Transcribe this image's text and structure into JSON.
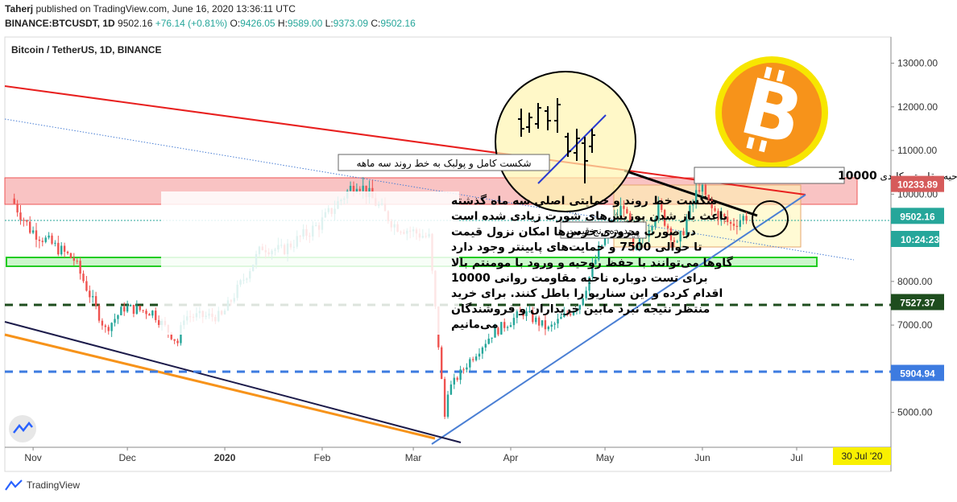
{
  "header": {
    "user": "Taherj",
    "published_line": "published on TradingView.com, June 16, 2020 13:36:11 UTC",
    "symbol_line": "BINANCE:BTCUSDT, 1D",
    "last": "9502.16",
    "change": "+76.14 (+0.81%)",
    "o_label": "O:",
    "o": "9426.05",
    "h_label": "H:",
    "h": "9589.00",
    "l_label": "L:",
    "l": "9373.09",
    "c_label": "C:",
    "c": "9502.16"
  },
  "chart_title": "Bitcoin / TetherUS, 1D, BINANCE",
  "footer": {
    "brand": "TradingView"
  },
  "colors": {
    "up": "#26a69a",
    "down": "#ef5350",
    "resistance_line": "#e8201f",
    "support_line": "#4a7fd4",
    "zone_red": "#f8b4b4",
    "zone_green": "#33dd33",
    "dashed_dark": "#1e4d1e",
    "dashed_blue": "#3d7be0",
    "orange_line": "#f7931a",
    "navy_line": "#1c1b4a",
    "date_highlight": "#f9f000"
  },
  "annotations": {
    "breakout": "شکست کامل و پولبک به خط روند سه ماهه",
    "resistance_label": "ناحیه مقاومتی کلیدی ",
    "resistance_value": "10000",
    "range_label": "محدوده رنج قیمت",
    "main_text": [
      "شکست خط روند و حمایتی اصلی سه ماه گذشته",
      "باعث باز شدن پوزیش‌های شورت زیادی شده است",
      "در صورت پیروزی خرس‌ها امکان نزول قیمت",
      "تا حوالی 7500 و حمایت‌های پایینتر وجود دارد",
      "گاوها می‌توانند با حفظ روحیه و ورود با مومنتم بالا",
      "برای تست دوباره ناحیه مقاومت روانی 10000",
      "اقدام کرده و این سناریو را باطل کنند. برای خرید",
      "منتظر نتیجه نبرد مابین خریداران و فروشندگان",
      "می‌مانیم"
    ]
  },
  "chart_data": {
    "type": "candlestick",
    "title": "Bitcoin / TetherUS, 1D, BINANCE",
    "xlabel": "",
    "ylabel": "",
    "ylim": [
      4200,
      13600
    ],
    "y_ticks": [
      5000,
      6000,
      7000,
      8000,
      9000,
      10000,
      11000,
      12000,
      13000
    ],
    "y_tick_labels": [
      "5000.00",
      "6000.00",
      "7000.00",
      "8000.00",
      "9000.00",
      "10000.00",
      "11000.00",
      "12000.00",
      "13000.00"
    ],
    "x_ticks": [
      "Nov",
      "Dec",
      "2020",
      "Feb",
      "Mar",
      "Apr",
      "May",
      "Jun",
      "Jul"
    ],
    "x_tick_dates": [
      "2019-11-01",
      "2019-12-01",
      "2020-01-01",
      "2020-02-01",
      "2020-03-01",
      "2020-04-01",
      "2020-05-01",
      "2020-06-01",
      "2020-07-01"
    ],
    "x_range": [
      "2019-10-23",
      "2020-07-31"
    ],
    "price_markers": [
      {
        "value": 10233.89,
        "label": "10233.89",
        "color": "#d65b5b"
      },
      {
        "value": 9502.16,
        "label": "9502.16",
        "color": "#26a69a"
      },
      {
        "value": 7527.37,
        "label": "7527.37",
        "color": "#1e4d1e"
      },
      {
        "value": 5904.94,
        "label": "5904.94",
        "color": "#3d7be0"
      }
    ],
    "countdown": "10:24:23",
    "date_label": "30 Jul '20",
    "key_points": [
      {
        "date": "2019-10-26",
        "price": 9900
      },
      {
        "date": "2019-11-01",
        "price": 9200
      },
      {
        "date": "2019-11-15",
        "price": 8500
      },
      {
        "date": "2019-11-25",
        "price": 6900
      },
      {
        "date": "2019-12-01",
        "price": 7400
      },
      {
        "date": "2019-12-10",
        "price": 7300
      },
      {
        "date": "2019-12-18",
        "price": 6600
      },
      {
        "date": "2019-12-20",
        "price": 7200
      },
      {
        "date": "2020-01-01",
        "price": 7200
      },
      {
        "date": "2020-01-14",
        "price": 8800
      },
      {
        "date": "2020-01-20",
        "price": 8700
      },
      {
        "date": "2020-02-01",
        "price": 9300
      },
      {
        "date": "2020-02-13",
        "price": 10300
      },
      {
        "date": "2020-02-25",
        "price": 9300
      },
      {
        "date": "2020-03-07",
        "price": 9000
      },
      {
        "date": "2020-03-12",
        "price": 4900
      },
      {
        "date": "2020-03-13",
        "price": 5500
      },
      {
        "date": "2020-03-20",
        "price": 6200
      },
      {
        "date": "2020-03-27",
        "price": 6800
      },
      {
        "date": "2020-04-06",
        "price": 7300
      },
      {
        "date": "2020-04-14",
        "price": 6900
      },
      {
        "date": "2020-04-24",
        "price": 7500
      },
      {
        "date": "2020-04-30",
        "price": 8700
      },
      {
        "date": "2020-05-08",
        "price": 9800
      },
      {
        "date": "2020-05-11",
        "price": 8600
      },
      {
        "date": "2020-05-19",
        "price": 9700
      },
      {
        "date": "2020-05-25",
        "price": 8800
      },
      {
        "date": "2020-06-01",
        "price": 10200
      },
      {
        "date": "2020-06-05",
        "price": 9650
      },
      {
        "date": "2020-06-11",
        "price": 9300
      },
      {
        "date": "2020-06-16",
        "price": 9502.16
      }
    ]
  }
}
